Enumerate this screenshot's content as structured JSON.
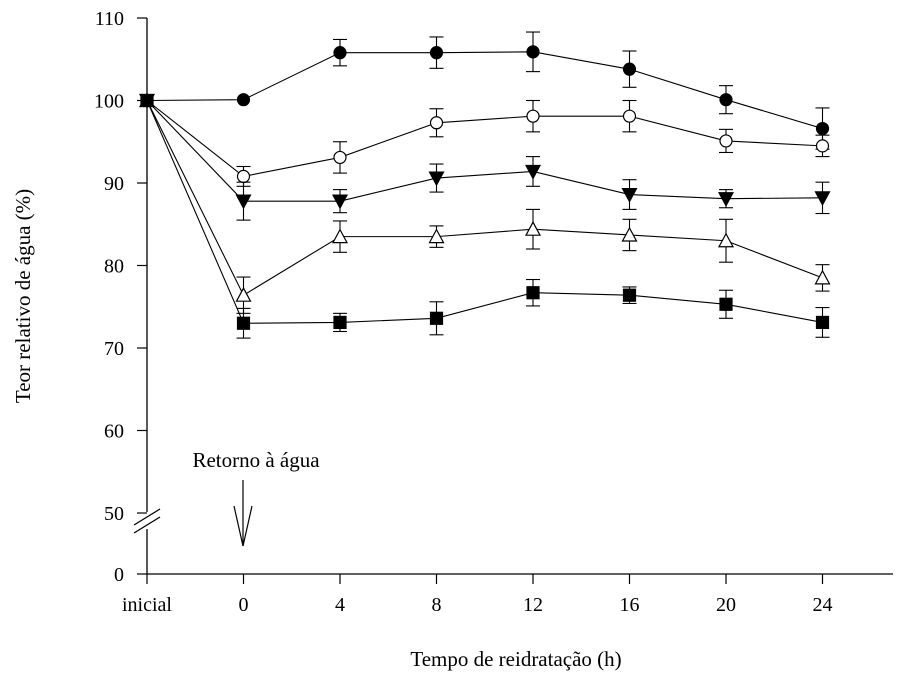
{
  "chart_data": {
    "type": "line",
    "xlabel": "Tempo de reidratação (h)",
    "ylabel": "Teor relativo de água (%)",
    "categories": [
      "inicial",
      "0",
      "4",
      "8",
      "12",
      "16",
      "20",
      "24"
    ],
    "y_ticks": [
      "0",
      "50",
      "60",
      "70",
      "80",
      "90",
      "100",
      "110"
    ],
    "y_axis_break": true,
    "grid": false,
    "annotation": "Retorno à água",
    "annotation_at": "0",
    "series": [
      {
        "marker": "filled-circle",
        "values": [
          100,
          100.1,
          105.8,
          105.8,
          105.9,
          103.8,
          100.1,
          96.6
        ],
        "errors": [
          0,
          0,
          1.6,
          1.9,
          2.4,
          2.2,
          1.7,
          2.5
        ]
      },
      {
        "marker": "open-circle",
        "values": [
          100,
          90.8,
          93.1,
          97.3,
          98.1,
          98.1,
          95.1,
          94.5
        ],
        "errors": [
          0,
          1.2,
          1.9,
          1.7,
          1.9,
          1.9,
          1.4,
          1.3
        ]
      },
      {
        "marker": "filled-triangle-down",
        "values": [
          100,
          87.8,
          87.8,
          90.6,
          91.4,
          88.6,
          88.1,
          88.2
        ],
        "errors": [
          0,
          2.3,
          1.4,
          1.7,
          1.8,
          1.8,
          1.1,
          1.9
        ]
      },
      {
        "marker": "open-triangle-up",
        "values": [
          100,
          76.4,
          83.5,
          83.5,
          84.4,
          83.7,
          83.0,
          78.5
        ],
        "errors": [
          0,
          2.2,
          1.9,
          1.3,
          2.4,
          1.9,
          2.6,
          1.6
        ]
      },
      {
        "marker": "filled-square",
        "values": [
          100,
          73.0,
          73.1,
          73.6,
          76.7,
          76.4,
          75.3,
          73.1
        ],
        "errors": [
          0,
          1.8,
          1.1,
          2.0,
          1.6,
          1.0,
          1.7,
          1.8
        ]
      }
    ]
  }
}
